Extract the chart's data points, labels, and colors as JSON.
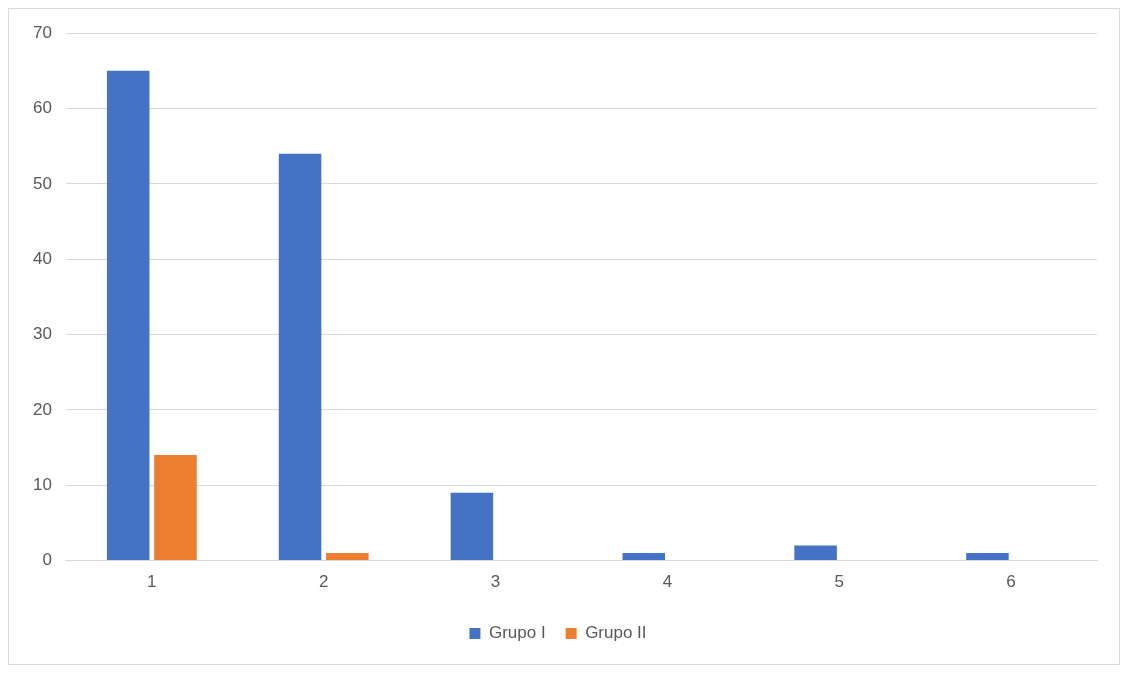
{
  "chart_data": {
    "type": "bar",
    "categories": [
      "1",
      "2",
      "3",
      "4",
      "5",
      "6"
    ],
    "series": [
      {
        "name": "Grupo I",
        "color": "#4472c4",
        "values": [
          65,
          54,
          9,
          1,
          2,
          1
        ]
      },
      {
        "name": "Grupo II",
        "color": "#ed7d31",
        "values": [
          14,
          1,
          0,
          0,
          0,
          0
        ]
      }
    ],
    "ylim": [
      0,
      70
    ],
    "yticks": [
      0,
      10,
      20,
      30,
      40,
      50,
      60,
      70
    ],
    "grid": "y",
    "legend": "bottom"
  }
}
